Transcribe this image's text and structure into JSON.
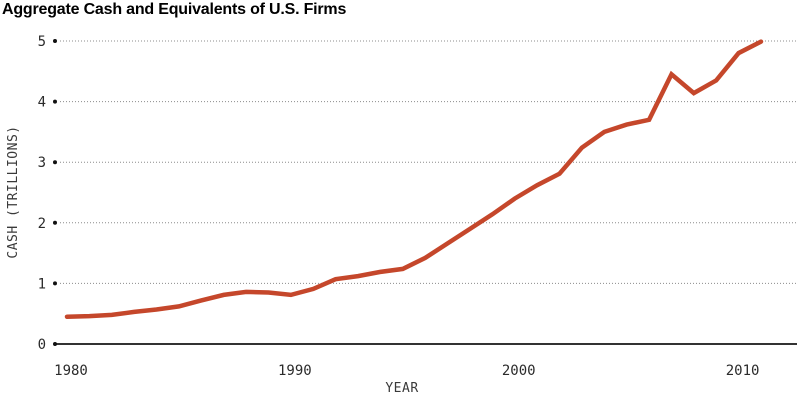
{
  "colors": {
    "line": "#c5472b",
    "grid_dots": "#8c8c8c",
    "axis_line": "#333333",
    "tick_dot": "#111111",
    "tick_label": "#2b2b2b",
    "axis_label": "#3a3a3a",
    "title": "#000000",
    "background": "#ffffff"
  },
  "chart_data": {
    "type": "line",
    "title": "Aggregate Cash and Equivalents of U.S. Firms",
    "xlabel": "YEAR",
    "ylabel": "CASH (TRILLIONS)",
    "x": [
      1980,
      1981,
      1982,
      1983,
      1984,
      1985,
      1986,
      1987,
      1988,
      1989,
      1990,
      1991,
      1992,
      1993,
      1994,
      1995,
      1996,
      1997,
      1998,
      1999,
      2000,
      2001,
      2002,
      2003,
      2004,
      2005,
      2006,
      2007,
      2008,
      2009,
      2010,
      2011
    ],
    "values": [
      0.45,
      0.46,
      0.48,
      0.53,
      0.57,
      0.62,
      0.72,
      0.81,
      0.86,
      0.85,
      0.81,
      0.91,
      1.07,
      1.12,
      1.19,
      1.24,
      1.42,
      1.66,
      1.9,
      2.14,
      2.4,
      2.62,
      2.81,
      3.24,
      3.5,
      3.62,
      3.7,
      4.45,
      4.14,
      4.35,
      4.8,
      4.99
    ],
    "xlim": [
      1980,
      2011
    ],
    "ylim": [
      0,
      5
    ],
    "xticks": [
      1980,
      1990,
      2000,
      2010
    ],
    "yticks": [
      0,
      1,
      2,
      3,
      4,
      5
    ],
    "grid": "horizontal-dotted",
    "legend": "none"
  }
}
